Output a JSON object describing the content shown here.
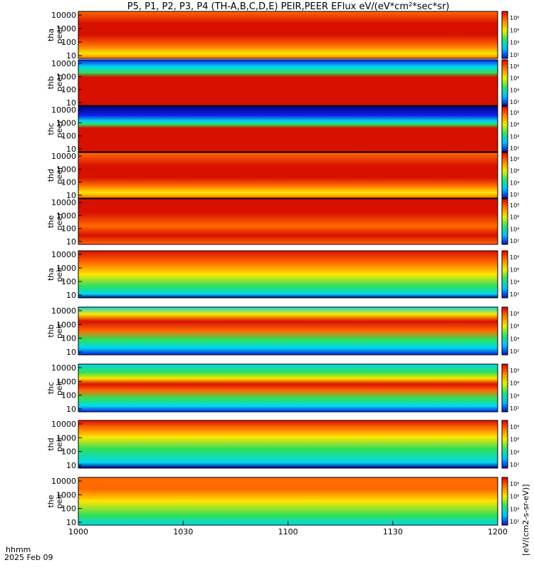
{
  "title": "P5, P1, P2, P3, P4 (TH-A,B,C,D,E) PEIR,PEER EFlux eV/(eV*cm²*sec*sr)",
  "time_axis": {
    "corner_label_1": "hhmm",
    "corner_label_2": "2025 Feb 09",
    "ticks": [
      "1000",
      "1030",
      "1100",
      "1130",
      "1200"
    ]
  },
  "colorbar": {
    "unit_label": "[eV/(cm2-s-sr-eV)]",
    "electron_ticks": [
      "10²",
      "10⁴",
      "10⁶",
      "10⁸"
    ],
    "ion_ticks": [
      "10²",
      "10⁴",
      "10⁶",
      "10⁸"
    ]
  },
  "colors": {
    "red": "#d81000",
    "orange": "#ff6a00",
    "yellow": "#ffe600",
    "green": "#2de05a",
    "cyan": "#00d8f0",
    "blue": "#1020e8",
    "navy": "#000080"
  },
  "chart_data": {
    "type": "heatmap",
    "x": [
      "1000",
      "1030",
      "1100",
      "1130",
      "1200"
    ],
    "xlabel": "hhmm",
    "colorbar_range": [
      "10²",
      "10⁸"
    ],
    "panels": [
      {
        "label1": "tha",
        "label2": "peer",
        "yticks": [
          "10000",
          "1000",
          "100",
          "10"
        ]
      },
      {
        "label1": "thb",
        "label2": "peer",
        "yticks": [
          "10000",
          "1000",
          "100",
          "10"
        ]
      },
      {
        "label1": "thc",
        "label2": "peer",
        "yticks": [
          "10000",
          "1000",
          "100",
          "10"
        ]
      },
      {
        "label1": "thd",
        "label2": "peer",
        "yticks": [
          "10000",
          "1000",
          "100",
          "10"
        ]
      },
      {
        "label1": "the",
        "label2": "peer",
        "yticks": [
          "10000",
          "1000",
          "100",
          "10"
        ]
      },
      {
        "label1": "tha",
        "label2": "peir",
        "yticks": [
          "10000",
          "1000",
          "100",
          "10"
        ]
      },
      {
        "label1": "thb",
        "label2": "peir",
        "yticks": [
          "10000",
          "1000",
          "100",
          "10"
        ]
      },
      {
        "label1": "thc",
        "label2": "peir",
        "yticks": [
          "10000",
          "1000",
          "100",
          "10"
        ]
      },
      {
        "label1": "thd",
        "label2": "peir",
        "yticks": [
          "10000",
          "1000",
          "100",
          "10"
        ]
      },
      {
        "label1": "the",
        "label2": "peir",
        "yticks": [
          "10000",
          "1000",
          "100",
          "10"
        ]
      }
    ]
  }
}
